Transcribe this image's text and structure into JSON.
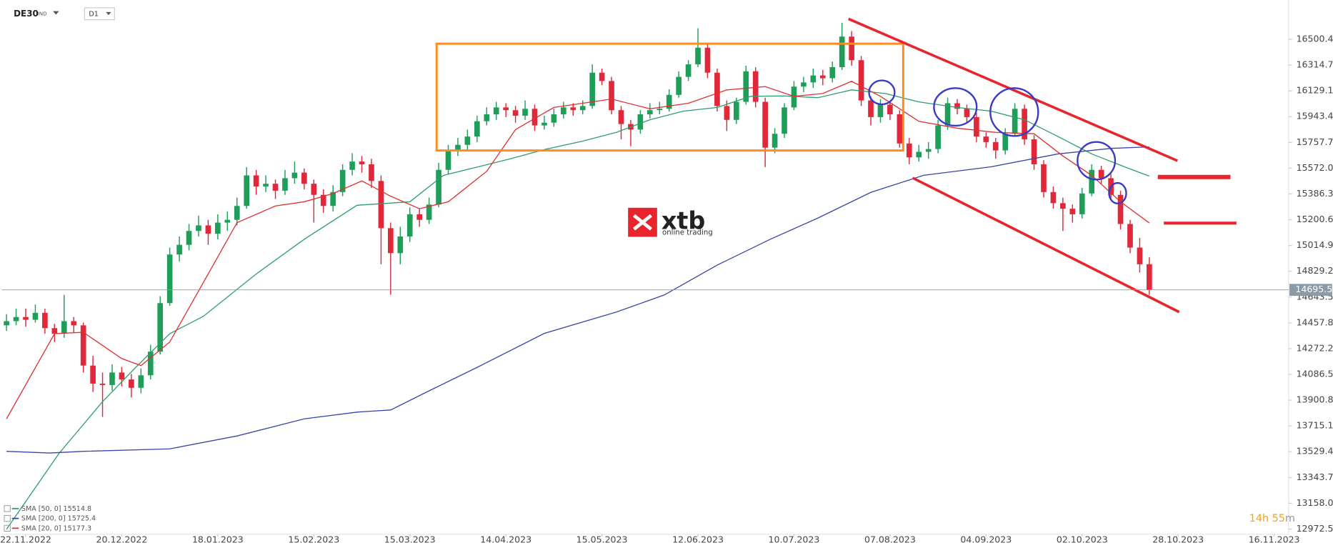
{
  "chart_data": {
    "type": "candlestick",
    "symbol": "DE30",
    "symbol_type": "IND",
    "timeframe": "D1",
    "countdown": {
      "hours": "14h",
      "minutes": "55",
      "unit": "m"
    },
    "logo": {
      "brand": "xtb",
      "tagline": "online trading"
    },
    "up_color": "#1f9e5a",
    "down_color": "#e0283a",
    "grid": false,
    "xlim": [
      -5,
      263
    ],
    "ylim": [
      12935,
      16783
    ],
    "xticks": [
      {
        "value": 0,
        "label": "22.11.2022"
      },
      {
        "value": 20,
        "label": "20.12.2022"
      },
      {
        "value": 40,
        "label": "18.01.2023"
      },
      {
        "value": 60,
        "label": "15.02.2023"
      },
      {
        "value": 80,
        "label": "15.03.2023"
      },
      {
        "value": 100,
        "label": "14.04.2023"
      },
      {
        "value": 120,
        "label": "15.05.2023"
      },
      {
        "value": 140,
        "label": "12.06.2023"
      },
      {
        "value": 160,
        "label": "10.07.2023"
      },
      {
        "value": 180,
        "label": "07.08.2023"
      },
      {
        "value": 200,
        "label": "04.09.2023"
      },
      {
        "value": 220,
        "label": "02.10.2023"
      },
      {
        "value": 240,
        "label": "28.10.2023"
      },
      {
        "value": 260,
        "label": "16.11.2023"
      }
    ],
    "yticks": [
      16500.4,
      16314.7,
      16129.1,
      15943.4,
      15757.7,
      {
        "value": 15572,
        "label": "15572.0"
      },
      15386.3,
      15200.6,
      15014.9,
      14829.2,
      14643.5,
      14457.8,
      14272.2,
      14086.5,
      13900.8,
      13715.1,
      13529.4,
      13343.7,
      {
        "value": 13158,
        "label": "13158.0"
      },
      12972.5
    ],
    "last_price": 14695.5,
    "x": [
      -4,
      -2,
      0,
      2,
      4,
      6,
      8,
      10,
      12,
      14,
      16,
      18,
      20,
      22,
      24,
      26,
      28,
      30,
      32,
      34,
      36,
      38,
      40,
      42,
      44,
      46,
      48,
      50,
      52,
      54,
      56,
      58,
      60,
      62,
      64,
      66,
      68,
      70,
      72,
      74,
      76,
      78,
      80,
      82,
      84,
      86,
      88,
      90,
      92,
      94,
      96,
      98,
      100,
      102,
      104,
      106,
      108,
      110,
      112,
      114,
      116,
      118,
      120,
      122,
      124,
      126,
      128,
      130,
      132,
      134,
      136,
      138,
      140,
      142,
      144,
      146,
      148,
      150,
      152,
      154,
      156,
      158,
      160,
      162,
      164,
      166,
      168,
      170,
      172,
      174,
      176,
      178,
      180,
      182,
      184,
      186,
      188,
      190,
      192,
      194,
      196,
      198,
      200,
      202,
      204,
      206,
      208,
      210,
      212,
      214,
      216,
      218,
      220,
      222,
      224,
      226,
      228,
      230,
      232,
      234
    ],
    "ohlc": [
      [
        14440,
        14520,
        14400,
        14470
      ],
      [
        14470,
        14560,
        14440,
        14500
      ],
      [
        14500,
        14560,
        14430,
        14480
      ],
      [
        14480,
        14590,
        14460,
        14530
      ],
      [
        14530,
        14560,
        14380,
        14420
      ],
      [
        14420,
        14450,
        14320,
        14380
      ],
      [
        14380,
        14660,
        14350,
        14470
      ],
      [
        14470,
        14500,
        14390,
        14440
      ],
      [
        14440,
        14460,
        14100,
        14150
      ],
      [
        14150,
        14220,
        13960,
        14020
      ],
      [
        14020,
        14100,
        13780,
        14010
      ],
      [
        14010,
        14160,
        13970,
        14100
      ],
      [
        14100,
        14140,
        14000,
        14050
      ],
      [
        14050,
        14090,
        13920,
        13990
      ],
      [
        13990,
        14130,
        13950,
        14080
      ],
      [
        14080,
        14300,
        14050,
        14250
      ],
      [
        14250,
        14650,
        14230,
        14600
      ],
      [
        14600,
        15000,
        14580,
        14950
      ],
      [
        14950,
        15080,
        14900,
        15020
      ],
      [
        15020,
        15170,
        14980,
        15120
      ],
      [
        15120,
        15230,
        15080,
        15160
      ],
      [
        15160,
        15200,
        15020,
        15100
      ],
      [
        15100,
        15240,
        15060,
        15180
      ],
      [
        15180,
        15260,
        15120,
        15200
      ],
      [
        15200,
        15360,
        15160,
        15300
      ],
      [
        15300,
        15580,
        15280,
        15520
      ],
      [
        15520,
        15560,
        15380,
        15440
      ],
      [
        15440,
        15520,
        15400,
        15460
      ],
      [
        15460,
        15490,
        15350,
        15410
      ],
      [
        15410,
        15560,
        15380,
        15500
      ],
      [
        15500,
        15620,
        15460,
        15540
      ],
      [
        15540,
        15570,
        15420,
        15460
      ],
      [
        15460,
        15490,
        15180,
        15380
      ],
      [
        15380,
        15420,
        15250,
        15300
      ],
      [
        15300,
        15450,
        15260,
        15400
      ],
      [
        15400,
        15600,
        15370,
        15560
      ],
      [
        15560,
        15680,
        15520,
        15620
      ],
      [
        15620,
        15660,
        15540,
        15600
      ],
      [
        15600,
        15640,
        15430,
        15480
      ],
      [
        15480,
        15520,
        14880,
        15140
      ],
      [
        15140,
        15180,
        14660,
        14960
      ],
      [
        14960,
        15150,
        14880,
        15080
      ],
      [
        15080,
        15290,
        15040,
        15240
      ],
      [
        15240,
        15280,
        15150,
        15200
      ],
      [
        15200,
        15360,
        15170,
        15310
      ],
      [
        15310,
        15610,
        15290,
        15560
      ],
      [
        15560,
        15740,
        15530,
        15700
      ],
      [
        15700,
        15790,
        15660,
        15740
      ],
      [
        15740,
        15850,
        15700,
        15800
      ],
      [
        15800,
        15950,
        15760,
        15910
      ],
      [
        15910,
        16010,
        15880,
        15960
      ],
      [
        15960,
        16050,
        15920,
        16010
      ],
      [
        16010,
        16040,
        15940,
        15990
      ],
      [
        15990,
        16020,
        15900,
        15950
      ],
      [
        15950,
        16060,
        15920,
        16000
      ],
      [
        16000,
        16030,
        15840,
        15880
      ],
      [
        15880,
        15950,
        15850,
        15900
      ],
      [
        15900,
        16000,
        15870,
        15960
      ],
      [
        15960,
        16050,
        15930,
        16010
      ],
      [
        16010,
        16040,
        15950,
        15990
      ],
      [
        15990,
        16060,
        15960,
        16020
      ],
      [
        16020,
        16320,
        16000,
        16260
      ],
      [
        16260,
        16290,
        16170,
        16200
      ],
      [
        16200,
        16230,
        15960,
        15990
      ],
      [
        15990,
        16020,
        15780,
        15890
      ],
      [
        15890,
        15920,
        15730,
        15850
      ],
      [
        15850,
        15990,
        15820,
        15960
      ],
      [
        15960,
        16040,
        15930,
        15990
      ],
      [
        15990,
        16050,
        15960,
        16000
      ],
      [
        16000,
        16140,
        15980,
        16100
      ],
      [
        16100,
        16270,
        16080,
        16230
      ],
      [
        16230,
        16350,
        16200,
        16320
      ],
      [
        16320,
        16580,
        16300,
        16440
      ],
      [
        16440,
        16470,
        16220,
        16260
      ],
      [
        16260,
        16290,
        15980,
        16020
      ],
      [
        16020,
        16060,
        15840,
        15920
      ],
      [
        15920,
        16080,
        15890,
        16050
      ],
      [
        16050,
        16310,
        16030,
        16270
      ],
      [
        16270,
        16300,
        16010,
        16050
      ],
      [
        16050,
        16080,
        15580,
        15720
      ],
      [
        15720,
        15860,
        15680,
        15820
      ],
      [
        15820,
        16040,
        15790,
        16010
      ],
      [
        16010,
        16200,
        15990,
        16160
      ],
      [
        16160,
        16230,
        16120,
        16190
      ],
      [
        16190,
        16290,
        16150,
        16240
      ],
      [
        16240,
        16280,
        16170,
        16220
      ],
      [
        16220,
        16340,
        16190,
        16300
      ],
      [
        16300,
        16620,
        16280,
        16520
      ],
      [
        16520,
        16560,
        16310,
        16350
      ],
      [
        16350,
        16380,
        16020,
        16060
      ],
      [
        16060,
        16090,
        15880,
        15940
      ],
      [
        15940,
        16070,
        15900,
        16030
      ],
      [
        16030,
        16060,
        15920,
        15960
      ],
      [
        15960,
        15990,
        15720,
        15750
      ],
      [
        15750,
        15790,
        15600,
        15650
      ],
      [
        15650,
        15740,
        15620,
        15690
      ],
      [
        15690,
        15760,
        15640,
        15710
      ],
      [
        15710,
        15920,
        15680,
        15880
      ],
      [
        15880,
        16080,
        15850,
        16040
      ],
      [
        16040,
        16070,
        15960,
        16000
      ],
      [
        16000,
        16030,
        15900,
        15940
      ],
      [
        15940,
        15970,
        15760,
        15800
      ],
      [
        15800,
        15830,
        15720,
        15760
      ],
      [
        15760,
        15790,
        15640,
        15700
      ],
      [
        15700,
        15860,
        15670,
        15820
      ],
      [
        15820,
        16040,
        15800,
        16000
      ],
      [
        16000,
        16030,
        15740,
        15780
      ],
      [
        15780,
        15810,
        15560,
        15600
      ],
      [
        15600,
        15630,
        15360,
        15400
      ],
      [
        15400,
        15440,
        15280,
        15320
      ],
      [
        15320,
        15360,
        15120,
        15280
      ],
      [
        15280,
        15310,
        15180,
        15240
      ],
      [
        15240,
        15430,
        15210,
        15390
      ],
      [
        15390,
        15600,
        15370,
        15560
      ],
      [
        15560,
        15590,
        15460,
        15500
      ],
      [
        15500,
        15530,
        15340,
        15380
      ],
      [
        15380,
        15410,
        15130,
        15170
      ],
      [
        15170,
        15200,
        14960,
        15000
      ],
      [
        15000,
        15070,
        14820,
        14880
      ],
      [
        14880,
        14930,
        14660,
        14695.5
      ]
    ],
    "series": [
      {
        "name": "SMA [50, 0]",
        "color": "#2e9e6e",
        "x": [
          -4,
          7,
          16,
          23,
          30,
          37,
          48,
          58,
          69,
          80,
          87,
          94,
          101,
          108,
          116,
          123,
          130,
          137,
          144,
          151,
          158,
          165,
          172,
          179,
          186,
          194,
          201,
          208,
          215,
          222,
          229,
          234
        ],
        "values": [
          12970,
          13520,
          13890,
          14140,
          14380,
          14505,
          14810,
          15060,
          15305,
          15330,
          15520,
          15580,
          15640,
          15706,
          15767,
          15830,
          15921,
          15983,
          16010,
          16090,
          16093,
          16080,
          16136,
          16110,
          16050,
          16010,
          15983,
          15921,
          15800,
          15675,
          15580,
          15514.8
        ]
      },
      {
        "name": "SMA [200, 0]",
        "color": "#3a45a8",
        "x": [
          -4,
          5,
          12,
          30,
          44,
          58,
          69,
          76,
          83,
          94,
          108,
          123,
          133,
          144,
          155,
          165,
          176,
          187,
          201,
          215,
          226,
          234
        ],
        "values": [
          13532,
          13520,
          13532,
          13550,
          13643,
          13766,
          13815,
          13830,
          13951,
          14137,
          14382,
          14536,
          14659,
          14874,
          15059,
          15213,
          15398,
          15521,
          15582,
          15675,
          15715,
          15725.4
        ]
      },
      {
        "name": "SMA [20, 0]",
        "color": "#e03030",
        "x": [
          -4,
          6,
          12,
          20,
          24,
          30,
          38,
          44,
          52,
          58,
          64,
          70,
          76,
          82,
          88,
          96,
          102,
          110,
          116,
          122,
          130,
          138,
          146,
          154,
          160,
          166,
          172,
          178,
          186,
          194,
          202,
          210,
          216,
          222,
          228,
          234
        ],
        "values": [
          13766,
          14380,
          14390,
          14200,
          14150,
          14320,
          14810,
          15180,
          15300,
          15330,
          15390,
          15480,
          15370,
          15280,
          15330,
          15550,
          15850,
          16010,
          16040,
          16070,
          16000,
          16040,
          16136,
          16160,
          16090,
          16110,
          16198,
          16090,
          15910,
          15860,
          15830,
          15820,
          15660,
          15520,
          15330,
          15177.3
        ]
      }
    ]
  }
}
